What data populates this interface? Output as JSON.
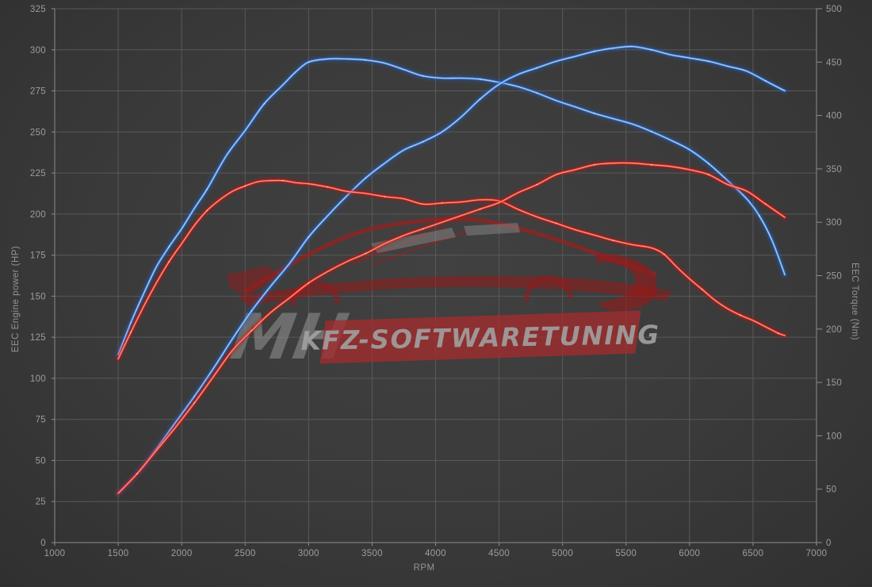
{
  "chart_data": {
    "type": "line",
    "title": "",
    "grid": true,
    "legend": "none",
    "x_axis": {
      "label": "RPM",
      "min": 1000,
      "max": 7000,
      "ticks": [
        1000,
        1500,
        2000,
        2500,
        3000,
        3500,
        4000,
        4500,
        5000,
        5500,
        6000,
        6500,
        7000
      ]
    },
    "y_left": {
      "label": "EEC Engine power (HP)",
      "min": 0,
      "max": 325,
      "ticks": [
        0,
        25,
        50,
        75,
        100,
        125,
        150,
        175,
        200,
        225,
        250,
        275,
        300,
        325
      ]
    },
    "y_right": {
      "label": "EEC Torque (Nm)",
      "min": 0,
      "max": 500,
      "ticks": [
        0,
        50,
        100,
        150,
        200,
        250,
        300,
        350,
        400,
        450,
        500
      ]
    },
    "watermark": {
      "line1": "MH",
      "line2": "KFZ-SOFTWARETUNING",
      "box_color": "#a82a2c",
      "car_color": "#9e1616",
      "text_color": "#a2a2a2"
    },
    "series": [
      {
        "id": "eec-torque-blue",
        "axis": "right",
        "unit": "Nm",
        "color": "#3d7fd8",
        "glow": "#2261c9",
        "core": "#aecff8",
        "points": [
          [
            1500,
            176
          ],
          [
            1600,
            206
          ],
          [
            1700,
            233
          ],
          [
            1800,
            258
          ],
          [
            1900,
            277
          ],
          [
            2000,
            294
          ],
          [
            2100,
            313
          ],
          [
            2200,
            331
          ],
          [
            2350,
            362
          ],
          [
            2500,
            386
          ],
          [
            2650,
            411
          ],
          [
            2800,
            429
          ],
          [
            2900,
            441
          ],
          [
            3000,
            450
          ],
          [
            3150,
            453
          ],
          [
            3300,
            453
          ],
          [
            3450,
            452
          ],
          [
            3600,
            449
          ],
          [
            3750,
            443
          ],
          [
            3900,
            437
          ],
          [
            4050,
            435
          ],
          [
            4200,
            435
          ],
          [
            4350,
            434
          ],
          [
            4500,
            431
          ],
          [
            4650,
            427
          ],
          [
            4800,
            421
          ],
          [
            4950,
            414
          ],
          [
            5100,
            408
          ],
          [
            5250,
            402
          ],
          [
            5400,
            397
          ],
          [
            5550,
            392
          ],
          [
            5700,
            385
          ],
          [
            5850,
            377
          ],
          [
            6000,
            368
          ],
          [
            6150,
            355
          ],
          [
            6300,
            339
          ],
          [
            6450,
            322
          ],
          [
            6550,
            306
          ],
          [
            6650,
            283
          ],
          [
            6750,
            251
          ]
        ]
      },
      {
        "id": "eec-power-blue",
        "axis": "left",
        "unit": "HP",
        "color": "#3d7fd8",
        "glow": "#2261c9",
        "core": "#aecff8",
        "points": [
          [
            1500,
            30
          ],
          [
            1650,
            42
          ],
          [
            1800,
            57
          ],
          [
            1950,
            73
          ],
          [
            2100,
            89
          ],
          [
            2250,
            106
          ],
          [
            2400,
            124
          ],
          [
            2550,
            141
          ],
          [
            2700,
            156
          ],
          [
            2850,
            170
          ],
          [
            3000,
            186
          ],
          [
            3150,
            199
          ],
          [
            3300,
            211
          ],
          [
            3450,
            222
          ],
          [
            3600,
            231
          ],
          [
            3750,
            239
          ],
          [
            3900,
            244
          ],
          [
            4050,
            250
          ],
          [
            4200,
            259
          ],
          [
            4350,
            270
          ],
          [
            4500,
            279
          ],
          [
            4650,
            285
          ],
          [
            4800,
            289
          ],
          [
            4950,
            293
          ],
          [
            5100,
            296
          ],
          [
            5250,
            299
          ],
          [
            5400,
            301
          ],
          [
            5550,
            302
          ],
          [
            5700,
            300
          ],
          [
            5850,
            297
          ],
          [
            6000,
            295
          ],
          [
            6150,
            293
          ],
          [
            6300,
            290
          ],
          [
            6450,
            287
          ],
          [
            6600,
            281
          ],
          [
            6750,
            275
          ]
        ]
      },
      {
        "id": "eec-torque-red",
        "axis": "right",
        "unit": "Nm",
        "color": "#e23222",
        "glow": "#bd1414",
        "core": "#ff9384",
        "points": [
          [
            1500,
            172
          ],
          [
            1600,
            197
          ],
          [
            1700,
            221
          ],
          [
            1800,
            243
          ],
          [
            1900,
            263
          ],
          [
            2000,
            280
          ],
          [
            2100,
            297
          ],
          [
            2200,
            311
          ],
          [
            2300,
            321
          ],
          [
            2400,
            329
          ],
          [
            2500,
            334
          ],
          [
            2600,
            338
          ],
          [
            2700,
            339
          ],
          [
            2800,
            339
          ],
          [
            2900,
            337
          ],
          [
            3000,
            336
          ],
          [
            3150,
            333
          ],
          [
            3300,
            329
          ],
          [
            3450,
            327
          ],
          [
            3600,
            324
          ],
          [
            3750,
            322
          ],
          [
            3900,
            317
          ],
          [
            4050,
            318
          ],
          [
            4200,
            319
          ],
          [
            4350,
            321
          ],
          [
            4500,
            320
          ],
          [
            4650,
            312
          ],
          [
            4800,
            305
          ],
          [
            4950,
            299
          ],
          [
            5100,
            293
          ],
          [
            5250,
            288
          ],
          [
            5400,
            283
          ],
          [
            5550,
            279
          ],
          [
            5700,
            276
          ],
          [
            5800,
            270
          ],
          [
            5900,
            258
          ],
          [
            6000,
            247
          ],
          [
            6100,
            237
          ],
          [
            6200,
            227
          ],
          [
            6300,
            219
          ],
          [
            6400,
            213
          ],
          [
            6500,
            208
          ],
          [
            6600,
            202
          ],
          [
            6700,
            196
          ],
          [
            6750,
            194
          ]
        ]
      },
      {
        "id": "eec-power-red",
        "axis": "left",
        "unit": "HP",
        "color": "#e23222",
        "glow": "#bd1414",
        "core": "#ff9384",
        "points": [
          [
            1500,
            30
          ],
          [
            1650,
            42
          ],
          [
            1800,
            56
          ],
          [
            1950,
            70
          ],
          [
            2100,
            85
          ],
          [
            2250,
            101
          ],
          [
            2400,
            117
          ],
          [
            2550,
            129
          ],
          [
            2700,
            140
          ],
          [
            2850,
            149
          ],
          [
            3000,
            158
          ],
          [
            3150,
            165
          ],
          [
            3300,
            171
          ],
          [
            3450,
            176
          ],
          [
            3600,
            182
          ],
          [
            3750,
            187
          ],
          [
            3900,
            191
          ],
          [
            4050,
            195
          ],
          [
            4200,
            199
          ],
          [
            4350,
            203
          ],
          [
            4500,
            207
          ],
          [
            4650,
            213
          ],
          [
            4800,
            218
          ],
          [
            4950,
            224
          ],
          [
            5100,
            227
          ],
          [
            5250,
            230
          ],
          [
            5400,
            231
          ],
          [
            5550,
            231
          ],
          [
            5700,
            230
          ],
          [
            5850,
            229
          ],
          [
            6000,
            227
          ],
          [
            6150,
            224
          ],
          [
            6300,
            218
          ],
          [
            6450,
            214
          ],
          [
            6600,
            206
          ],
          [
            6750,
            198
          ]
        ]
      }
    ]
  }
}
